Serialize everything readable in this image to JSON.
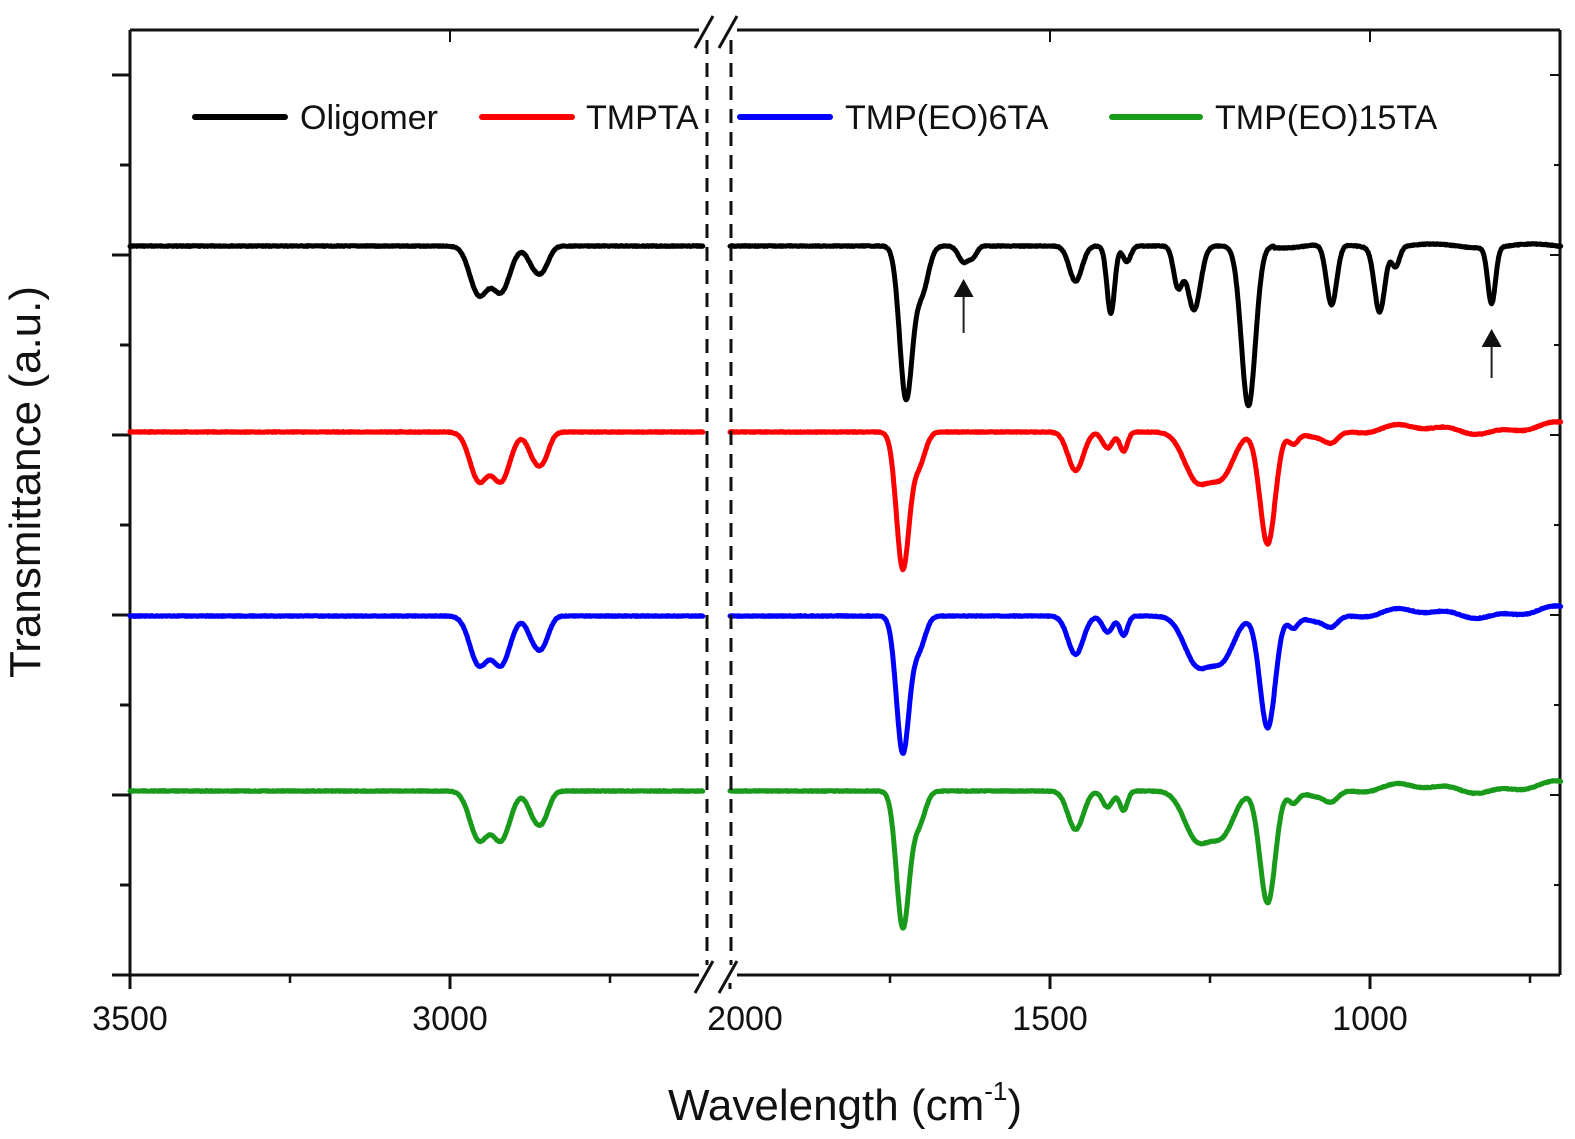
{
  "chart_data": {
    "type": "line",
    "title": "",
    "xlabel": "Wavelength (cm",
    "xlabel_sup": "-1",
    "xlabel_close": ")",
    "ylabel": "Transmittance (a.u.)",
    "x_axis": {
      "reversed": true,
      "broken": true,
      "segments": [
        [
          3500,
          2600
        ],
        [
          2000,
          700
        ]
      ],
      "tick_labels": [
        "3500",
        "3000",
        "2000",
        "1500",
        "1000"
      ],
      "tick_values": [
        3500,
        3000,
        2000,
        1500,
        1000
      ],
      "minor_tick_values": [
        3250,
        2750,
        1750,
        1250,
        750
      ]
    },
    "y_axis": {
      "tick_labels_shown": false,
      "major_ticks": 6,
      "minor_ticks_between": 1
    },
    "grid": false,
    "legend_position": "top",
    "annotations": [
      {
        "type": "arrow",
        "series": "Oligomer",
        "x": 1635,
        "label": ""
      },
      {
        "type": "arrow",
        "series": "Oligomer",
        "x": 810,
        "label": ""
      }
    ],
    "series": [
      {
        "name": "Oligomer",
        "color": "#000000",
        "baseline_offset": 0,
        "peaks": [
          [
            2955,
            0.3,
            14
          ],
          [
            2920,
            0.28,
            14
          ],
          [
            2870,
            0.1,
            10
          ],
          [
            2855,
            0.13,
            10
          ],
          [
            1725,
            0.95,
            10
          ],
          [
            1700,
            0.28,
            10
          ],
          [
            1635,
            0.1,
            8
          ],
          [
            1620,
            0.06,
            6
          ],
          [
            1460,
            0.22,
            10
          ],
          [
            1405,
            0.42,
            6
          ],
          [
            1380,
            0.1,
            6
          ],
          [
            1300,
            0.25,
            7
          ],
          [
            1275,
            0.4,
            10
          ],
          [
            1190,
            1.0,
            11
          ],
          [
            1060,
            0.38,
            8
          ],
          [
            985,
            0.4,
            8
          ],
          [
            960,
            0.12,
            6
          ],
          [
            810,
            0.35,
            6
          ]
        ]
      },
      {
        "name": "TMPTA",
        "color": "#ff0000",
        "baseline_offset": 1,
        "peaks": [
          [
            2955,
            0.3,
            14
          ],
          [
            2920,
            0.3,
            14
          ],
          [
            2870,
            0.12,
            10
          ],
          [
            2855,
            0.16,
            10
          ],
          [
            1730,
            0.85,
            10
          ],
          [
            1705,
            0.2,
            10
          ],
          [
            1460,
            0.24,
            12
          ],
          [
            1410,
            0.1,
            8
          ],
          [
            1385,
            0.12,
            6
          ],
          [
            1270,
            0.3,
            20
          ],
          [
            1230,
            0.25,
            18
          ],
          [
            1160,
            0.7,
            12
          ],
          [
            1120,
            0.08,
            8
          ],
          [
            1060,
            0.05,
            10
          ]
        ]
      },
      {
        "name": "TMP(EO)6TA",
        "color": "#0000ff",
        "baseline_offset": 2,
        "peaks": [
          [
            2955,
            0.3,
            14
          ],
          [
            2920,
            0.3,
            14
          ],
          [
            2870,
            0.12,
            10
          ],
          [
            2855,
            0.16,
            10
          ],
          [
            1730,
            0.85,
            10
          ],
          [
            1705,
            0.2,
            10
          ],
          [
            1460,
            0.24,
            12
          ],
          [
            1410,
            0.1,
            8
          ],
          [
            1385,
            0.12,
            6
          ],
          [
            1270,
            0.3,
            20
          ],
          [
            1230,
            0.25,
            18
          ],
          [
            1160,
            0.7,
            12
          ],
          [
            1120,
            0.08,
            8
          ],
          [
            1060,
            0.05,
            10
          ]
        ]
      },
      {
        "name": "TMP(EO)15TA",
        "color": "#1a9a1a",
        "baseline_offset": 3,
        "peaks": [
          [
            2955,
            0.3,
            14
          ],
          [
            2920,
            0.3,
            14
          ],
          [
            2870,
            0.12,
            10
          ],
          [
            2855,
            0.16,
            10
          ],
          [
            1730,
            0.85,
            10
          ],
          [
            1705,
            0.2,
            10
          ],
          [
            1460,
            0.24,
            12
          ],
          [
            1410,
            0.1,
            8
          ],
          [
            1385,
            0.12,
            6
          ],
          [
            1270,
            0.3,
            20
          ],
          [
            1230,
            0.25,
            18
          ],
          [
            1160,
            0.7,
            12
          ],
          [
            1120,
            0.08,
            8
          ],
          [
            1060,
            0.05,
            10
          ]
        ]
      }
    ]
  }
}
